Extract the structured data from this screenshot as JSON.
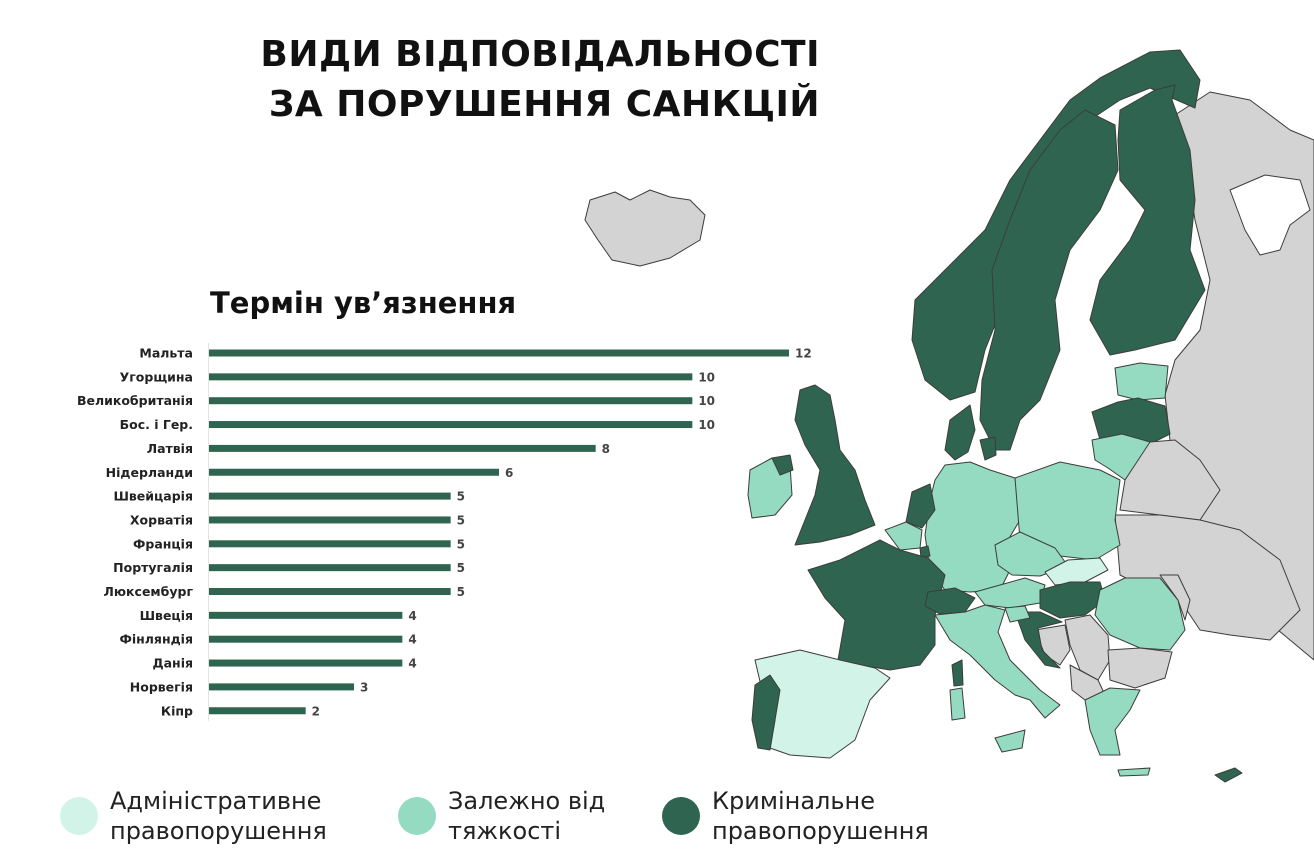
{
  "title": {
    "line1": "ВИДИ ВІДПОВІДАЛЬНОСТІ",
    "line2": "ЗА ПОРУШЕННЯ САНКЦІЙ"
  },
  "colors": {
    "administrative": "#d2f3e8",
    "depends": "#95dbc2",
    "criminal": "#2f6550",
    "other": "#d3d3d3",
    "bar": "#2f6550"
  },
  "legend": [
    {
      "label": "Адміністративне правопорушення",
      "color": "#d2f3e8"
    },
    {
      "label": "Залежно від тяжкості",
      "color": "#95dbc2"
    },
    {
      "label": "Кримінальне правопорушення",
      "color": "#2f6550"
    }
  ],
  "chart_data": {
    "type": "bar",
    "orientation": "horizontal",
    "title": "Термін ув’язнення",
    "categories": [
      "Мальта",
      "Угорщина",
      "Великобританія",
      "Бос. і Гер.",
      "Латвія",
      "Нідерланди",
      "Швейцарія",
      "Хорватія",
      "Франція",
      "Португалія",
      "Люксембург",
      "Швеція",
      "Фінляндія",
      "Данія",
      "Норвегія",
      "Кіпр"
    ],
    "values": [
      12,
      10,
      10,
      10,
      8,
      6,
      5,
      5,
      5,
      5,
      5,
      4,
      4,
      4,
      3,
      2
    ],
    "xlim": [
      0,
      12
    ],
    "grid": false,
    "data_labels": true
  }
}
